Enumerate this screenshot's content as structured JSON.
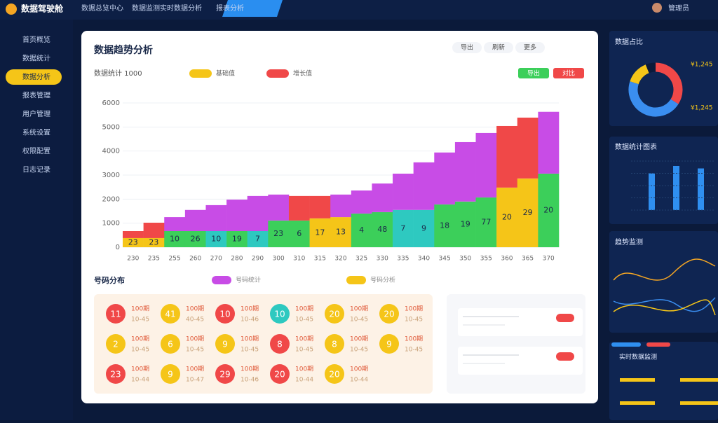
{
  "topbar": {
    "brand": "数据驾驶舱",
    "tabs": [
      "数据总览中心",
      "数据监测",
      "实时数据分析",
      "报表分析"
    ],
    "user": "管理员"
  },
  "sidebar": {
    "items": [
      "首页概览",
      "数据统计",
      "数据分析",
      "报表管理",
      "用户管理",
      "系统设置",
      "权限配置",
      "日志记录"
    ],
    "active": 2
  },
  "card": {
    "title": "数据趋势分析",
    "buttons": [
      "导出",
      "刷新",
      "更多"
    ],
    "actions": [
      "导出",
      "对比"
    ]
  },
  "chart_data": {
    "type": "stacked_bar",
    "title": "数据统计 1000",
    "categories": [
      "230",
      "235",
      "255",
      "260",
      "270",
      "280",
      "290",
      "300",
      "310",
      "315",
      "320",
      "325",
      "330",
      "335",
      "340",
      "345",
      "350",
      "355",
      "360",
      "365",
      "370"
    ],
    "series": [
      {
        "name": "基础值",
        "colors": [
          "#f5c518",
          "#f5c518",
          "#3ccf5a",
          "#3ccf5a",
          "#2ec9c0",
          "#3ccf5a",
          "#2ec9c0",
          "#3ccf5a",
          "#3ccf5a",
          "#f5c518",
          "#f5c518",
          "#3ccf5a",
          "#3ccf5a",
          "#2ec9c0",
          "#2ec9c0",
          "#3ccf5a",
          "#3ccf5a",
          "#3ccf5a",
          "#f5c518",
          "#f5c518",
          "#3ccf5a"
        ],
        "values": [
          380,
          380,
          670,
          670,
          670,
          670,
          670,
          1110,
          1110,
          1200,
          1250,
          1400,
          1460,
          1550,
          1550,
          1780,
          1900,
          2070,
          2480,
          2860,
          3060
        ],
        "labels": [
          "23",
          "23",
          "10",
          "26",
          "10",
          "19",
          "7",
          "23",
          "6",
          "17",
          "13",
          "4",
          "48",
          "7",
          "9",
          "18",
          "19",
          "77",
          "20",
          "29",
          "20"
        ]
      },
      {
        "name": "增长值",
        "colors": [
          "#f04848",
          "#f04848",
          "#c84ce6",
          "#c84ce6",
          "#c84ce6",
          "#c84ce6",
          "#c84ce6",
          "#c84ce6",
          "#f04848",
          "#f04848",
          "#c84ce6",
          "#c84ce6",
          "#c84ce6",
          "#c84ce6",
          "#c84ce6",
          "#c84ce6",
          "#c84ce6",
          "#c84ce6",
          "#f04848",
          "#f04848",
          "#c84ce6"
        ],
        "values": [
          290,
          640,
          580,
          880,
          1080,
          1310,
          1460,
          1080,
          1020,
          930,
          940,
          960,
          1190,
          1510,
          1980,
          2160,
          2470,
          2680,
          2560,
          2530,
          2570
        ]
      }
    ],
    "ylim": [
      0,
      6000
    ],
    "yticks": [
      0,
      1000,
      2000,
      3000,
      4000,
      5000,
      6000
    ]
  },
  "balls": {
    "title": "号码分布",
    "tags": [
      "号码统计",
      "号码分析"
    ],
    "items": [
      {
        "value": 11,
        "color": "#f04848",
        "text": "100期",
        "sub": "10-45"
      },
      {
        "value": 41,
        "color": "#f5c518",
        "text": "100期",
        "sub": "40-45"
      },
      {
        "value": 10,
        "color": "#f04848",
        "text": "100期",
        "sub": "10-46"
      },
      {
        "value": 10,
        "color": "#2ec9c0",
        "text": "100期",
        "sub": "10-45"
      },
      {
        "value": 20,
        "color": "#f5c518",
        "text": "100期",
        "sub": "10-45"
      },
      {
        "value": 20,
        "color": "#f5c518",
        "text": "100期",
        "sub": "10-45"
      },
      {
        "value": 2,
        "color": "#f5c518",
        "text": "100期",
        "sub": "10-45"
      },
      {
        "value": 6,
        "color": "#f5c518",
        "text": "100期",
        "sub": "10-45"
      },
      {
        "value": 9,
        "color": "#f5c518",
        "text": "100期",
        "sub": "10-45"
      },
      {
        "value": 8,
        "color": "#f04848",
        "text": "100期",
        "sub": "10-45"
      },
      {
        "value": 8,
        "color": "#f5c518",
        "text": "100期",
        "sub": "10-45"
      },
      {
        "value": 9,
        "color": "#f5c518",
        "text": "100期",
        "sub": "10-45"
      },
      {
        "value": 23,
        "color": "#f04848",
        "text": "100期",
        "sub": "10-44"
      },
      {
        "value": 9,
        "color": "#f5c518",
        "text": "100期",
        "sub": "10-47"
      },
      {
        "value": 29,
        "color": "#f04848",
        "text": "100期",
        "sub": "10-46"
      },
      {
        "value": 20,
        "color": "#f04848",
        "text": "100期",
        "sub": "10-44"
      },
      {
        "value": 20,
        "color": "#f5c518",
        "text": "100期",
        "sub": "10-44"
      }
    ]
  },
  "side": {
    "donut": {
      "title": "数据占比",
      "values": [
        34,
        46,
        14,
        6
      ],
      "colors": [
        "#f04848",
        "#3a8ef0",
        "#f5c518",
        "#0b1a3a"
      ],
      "legend": [
        "¥1,245",
        "¥1,245"
      ]
    },
    "bars": {
      "title": "数据统计图表",
      "values": [
        30,
        36,
        34
      ],
      "color": "#2f8ff0"
    },
    "lines": {
      "title": "趋势监测"
    },
    "list": {
      "title": "实时数据监测"
    }
  }
}
